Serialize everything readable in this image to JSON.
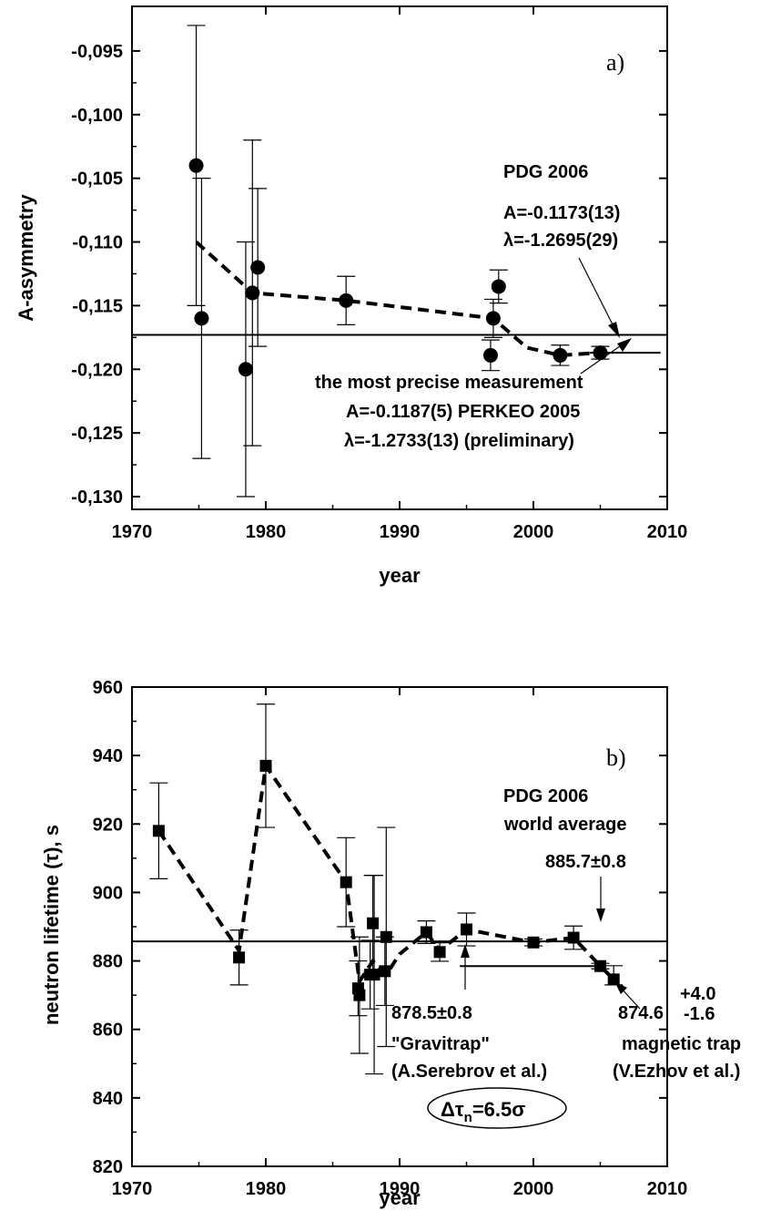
{
  "chart_data": [
    {
      "id": "a",
      "type": "scatter",
      "panel_label": "a)",
      "xlabel": "year",
      "ylabel": "A-asymmetry",
      "xlim": [
        1970,
        2010
      ],
      "ylim": [
        -0.131,
        -0.0915
      ],
      "xticks": [
        1970,
        1980,
        1990,
        2000,
        2010
      ],
      "xtick_labels": [
        "1970",
        "1980",
        "1990",
        "2000",
        "2010"
      ],
      "yticks": [
        -0.095,
        -0.1,
        -0.105,
        -0.11,
        -0.115,
        -0.12,
        -0.125,
        -0.13
      ],
      "ytick_labels": [
        "-0,095",
        "-0,100",
        "-0,105",
        "-0,110",
        "-0,115",
        "-0,120",
        "-0,125",
        "-0,130"
      ],
      "marker": "circle",
      "series": [
        {
          "points": [
            {
              "x": 1974.8,
              "y": -0.104,
              "err": 0.011
            },
            {
              "x": 1975.2,
              "y": -0.116,
              "err": 0.011
            },
            {
              "x": 1978.5,
              "y": -0.12,
              "err": 0.01
            },
            {
              "x": 1979.0,
              "y": -0.114,
              "err": 0.012
            },
            {
              "x": 1979.4,
              "y": -0.112,
              "err": 0.0062
            },
            {
              "x": 1986.0,
              "y": -0.1146,
              "err": 0.0019
            },
            {
              "x": 1996.8,
              "y": -0.1189,
              "err": 0.0012
            },
            {
              "x": 1997.0,
              "y": -0.116,
              "err": 0.0015
            },
            {
              "x": 1997.4,
              "y": -0.1135,
              "err": 0.0013
            },
            {
              "x": 2002.0,
              "y": -0.1189,
              "err": 0.0008
            },
            {
              "x": 2005.0,
              "y": -0.1187,
              "err": 0.0005
            }
          ]
        }
      ],
      "trend": {
        "x": [
          1974.8,
          1979.0,
          1986.0,
          1997.0,
          1999.5,
          2002.0,
          2005.0
        ],
        "y": [
          -0.11,
          -0.114,
          -0.1146,
          -0.116,
          -0.1183,
          -0.1189,
          -0.1187
        ]
      },
      "reference_lines": [
        {
          "y": -0.1173,
          "x": [
            1970,
            2010
          ]
        },
        {
          "y": -0.1187,
          "x": [
            2004.2,
            2009.5
          ]
        }
      ],
      "annotations": {
        "pdg_lines": [
          "PDG 2006",
          "A=-0.1173(13)",
          "λ=-1.2695(29)"
        ],
        "perkeo_lines": [
          "the most precise measurement",
          "A=-0.1187(5) PERKEO 2005",
          "λ=-1.2733(13) (preliminary)"
        ]
      }
    },
    {
      "id": "b",
      "type": "scatter",
      "panel_label": "b)",
      "xlabel": "year",
      "ylabel": "neutron lifetime (τ), s",
      "xlim": [
        1970,
        2010
      ],
      "ylim": [
        820,
        960
      ],
      "xticks": [
        1970,
        1980,
        1990,
        2000,
        2010
      ],
      "xtick_labels": [
        "1970",
        "1980",
        "1990",
        "2000",
        "2010"
      ],
      "yticks": [
        820,
        840,
        860,
        880,
        900,
        920,
        940,
        960
      ],
      "ytick_labels": [
        "820",
        "840",
        "860",
        "880",
        "900",
        "920",
        "940",
        "960"
      ],
      "marker": "square",
      "series": [
        {
          "points": [
            {
              "x": 1972,
              "y": 918,
              "err": 14
            },
            {
              "x": 1978,
              "y": 881,
              "err": 8
            },
            {
              "x": 1980,
              "y": 937,
              "err": 18
            },
            {
              "x": 1986,
              "y": 903,
              "err": 13
            },
            {
              "x": 1986.9,
              "y": 872,
              "err": 8
            },
            {
              "x": 1987.0,
              "y": 870,
              "err": 17
            },
            {
              "x": 1987.8,
              "y": 876,
              "err": 10
            },
            {
              "x": 1988.0,
              "y": 891,
              "err": 14
            },
            {
              "x": 1988.1,
              "y": 876,
              "err": 29
            },
            {
              "x": 1988.9,
              "y": 877,
              "err": 10
            },
            {
              "x": 1989.0,
              "y": 887,
              "err": 32
            },
            {
              "x": 1992,
              "y": 888.4,
              "err": 3.3
            },
            {
              "x": 1993,
              "y": 882.6,
              "err": 2.7
            },
            {
              "x": 1995,
              "y": 889.2,
              "err": 4.8
            },
            {
              "x": 2000,
              "y": 885.4,
              "err": 1.0
            },
            {
              "x": 2003,
              "y": 886.8,
              "err": 3.4
            },
            {
              "x": 2005,
              "y": 878.5,
              "err": 0.8
            },
            {
              "x": 2006,
              "y": 874.6,
              "err_plus": 4.0,
              "err_minus": 1.6
            }
          ]
        }
      ],
      "trend": {
        "x": [
          1972,
          1978,
          1980,
          1986,
          1987,
          1988,
          1989,
          1990,
          1992,
          1993,
          1995,
          2000,
          2003,
          2005,
          2006
        ],
        "y": [
          918,
          883,
          937,
          903,
          874,
          880,
          876,
          882,
          888.4,
          883,
          889.2,
          885.4,
          886.8,
          878.5,
          874.6
        ]
      },
      "reference_lines": [
        {
          "y": 885.7,
          "x": [
            1970,
            2010
          ]
        },
        {
          "y": 878.5,
          "x": [
            1994.5,
            2005
          ]
        }
      ],
      "annotations": {
        "pdg_lines": [
          "PDG 2006",
          "world average",
          "885.7±0.8"
        ],
        "gravitrap_lines": [
          "878.5±0.8",
          "\"Gravitrap\"",
          "(A.Serebrov et al.)"
        ],
        "magtrap_value": "874.6",
        "magtrap_err_plus": "+4.0",
        "magtrap_err_minus": "-1.6",
        "magtrap_lines": [
          "magnetic trap",
          "(V.Ezhov et al.)"
        ],
        "delta_prefix": "Δτ",
        "delta_sub": "n",
        "delta_suffix": "=6.5σ"
      }
    }
  ]
}
